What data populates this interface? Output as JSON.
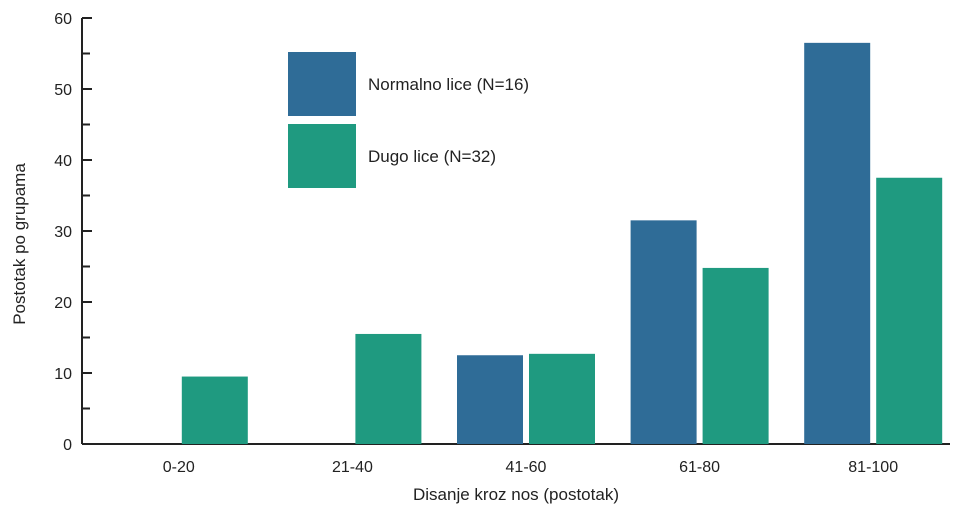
{
  "chart_data": {
    "type": "bar",
    "categories": [
      "0-20",
      "21-40",
      "41-60",
      "61-80",
      "81-100"
    ],
    "series": [
      {
        "name": "Normalno lice (N=16)",
        "values": [
          0,
          0,
          12.5,
          31.5,
          56.5
        ],
        "color": "#2f6c97"
      },
      {
        "name": "Dugo lice (N=32)",
        "values": [
          9.5,
          15.5,
          12.7,
          24.8,
          37.5
        ],
        "color": "#1f9a80"
      }
    ],
    "xlabel": "Disanje kroz nos (postotak)",
    "ylabel": "Postotak po grupama",
    "ylim": [
      0,
      60
    ],
    "yticks": [
      0,
      10,
      20,
      30,
      40,
      50,
      60
    ],
    "ytick_labels": [
      "0",
      "10",
      "20",
      "30",
      "40",
      "50",
      "60"
    ],
    "grid": false,
    "legend_position": "top-center"
  }
}
